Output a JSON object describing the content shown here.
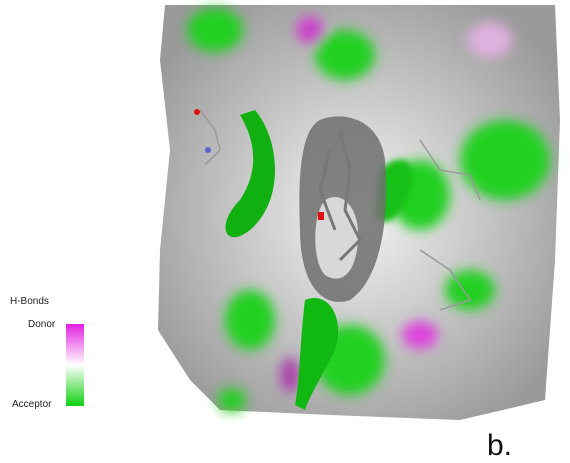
{
  "legend": {
    "title": "H-Bonds",
    "top_label": "Donor",
    "bottom_label": "Acceptor"
  },
  "panel_label": "b."
}
